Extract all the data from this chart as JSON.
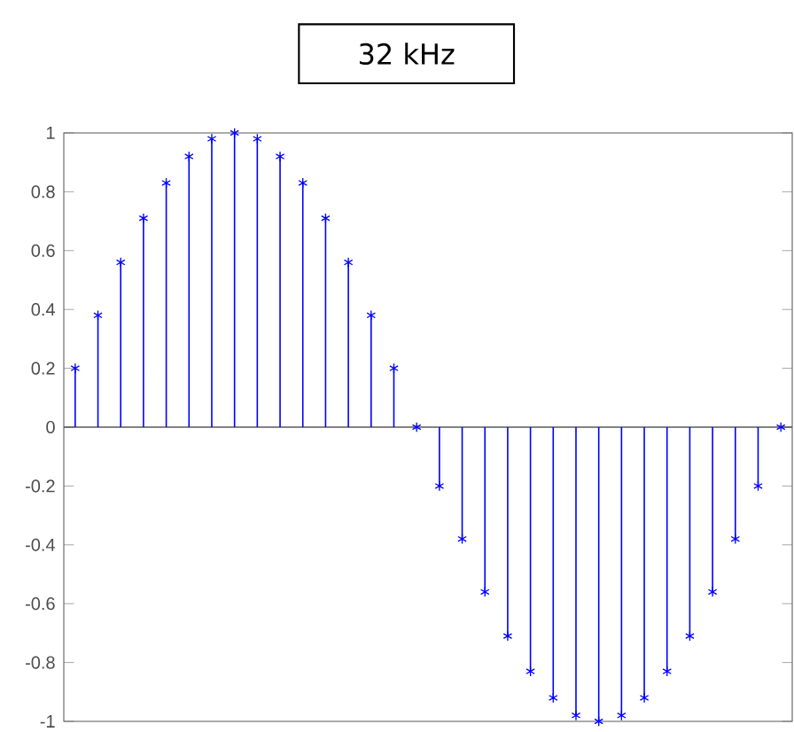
{
  "chart_data": {
    "type": "lollipop",
    "title": "32 kHz",
    "categories": [
      null,
      null,
      null,
      null,
      null,
      null,
      null,
      null,
      null,
      null,
      null,
      null,
      null,
      null,
      null,
      null,
      null,
      null,
      null,
      null,
      null,
      null,
      null,
      null,
      null,
      null,
      null,
      null,
      null,
      null,
      null,
      null
    ],
    "values": [
      0.2,
      0.38,
      0.56,
      0.71,
      0.83,
      0.92,
      0.98,
      1,
      0.98,
      0.92,
      0.83,
      0.71,
      0.56,
      0.38,
      0.2,
      0,
      -0.2,
      -0.38,
      -0.56,
      -0.71,
      -0.83,
      -0.92,
      -0.98,
      -1,
      -0.98,
      -0.92,
      -0.83,
      -0.71,
      -0.56,
      -0.38,
      -0.2,
      0
    ],
    "color": "#0000ff",
    "marker": "cross",
    "ylim": [
      -1,
      1
    ],
    "yticks": [
      -1,
      -0.8,
      -0.6,
      -0.4,
      -0.2,
      0,
      0.2,
      0.4,
      0.6,
      0.8,
      1
    ],
    "tick_labels": "y"
  }
}
